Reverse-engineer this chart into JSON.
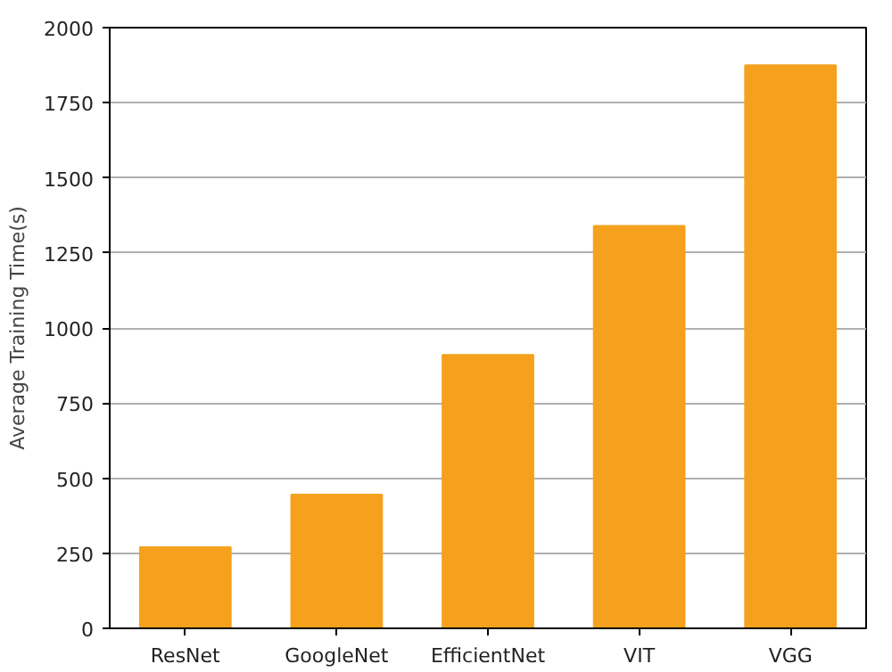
{
  "chart_data": {
    "type": "bar",
    "ylabel": "Average Training Time(s)",
    "categories": [
      "ResNet",
      "GoogleNet",
      "EfficientNet",
      "VIT",
      "VGG"
    ],
    "values": [
      270,
      445,
      910,
      1340,
      1875
    ],
    "color": "#f5a11d",
    "ylim": [
      0,
      2000
    ],
    "yticks": [
      0,
      250,
      500,
      750,
      1000,
      1250,
      1500,
      1750,
      2000
    ],
    "grid": "y"
  }
}
